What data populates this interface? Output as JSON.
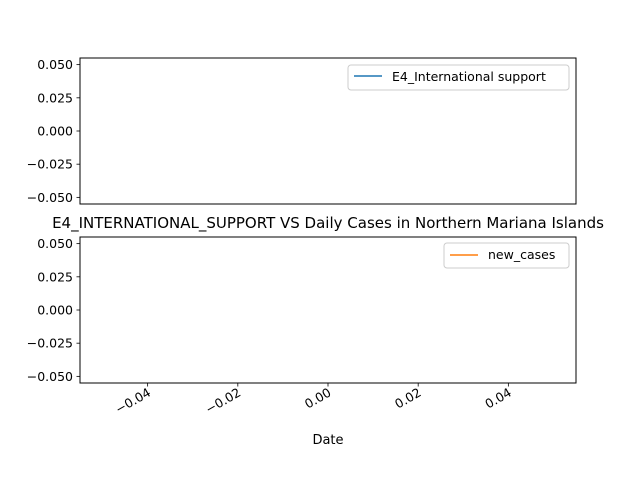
{
  "chart_data": [
    {
      "type": "line",
      "title": "",
      "xlabel": "",
      "ylabel": "",
      "ylim": [
        -0.055,
        0.055
      ],
      "yticks": [
        "0.050",
        "0.025",
        "0.000",
        "−0.025",
        "−0.050"
      ],
      "show_x_ticklabels": false,
      "grid": false,
      "legend_position": "upper right",
      "series": [
        {
          "name": "E4_International support",
          "color": "#1f77b4",
          "x": [],
          "values": []
        }
      ]
    },
    {
      "type": "line",
      "title": "E4_INTERNATIONAL_SUPPORT VS Daily Cases in Northern Mariana Islands",
      "xlabel": "Date",
      "ylabel": "",
      "xlim": [
        -0.055,
        0.055
      ],
      "ylim": [
        -0.055,
        0.055
      ],
      "xticks": [
        "−0.04",
        "−0.02",
        "0.00",
        "0.02",
        "0.04"
      ],
      "yticks": [
        "0.050",
        "0.025",
        "0.000",
        "−0.025",
        "−0.050"
      ],
      "grid": false,
      "legend_position": "upper right",
      "series": [
        {
          "name": "new_cases",
          "color": "#ff7f0e",
          "x": [],
          "values": []
        }
      ]
    }
  ]
}
